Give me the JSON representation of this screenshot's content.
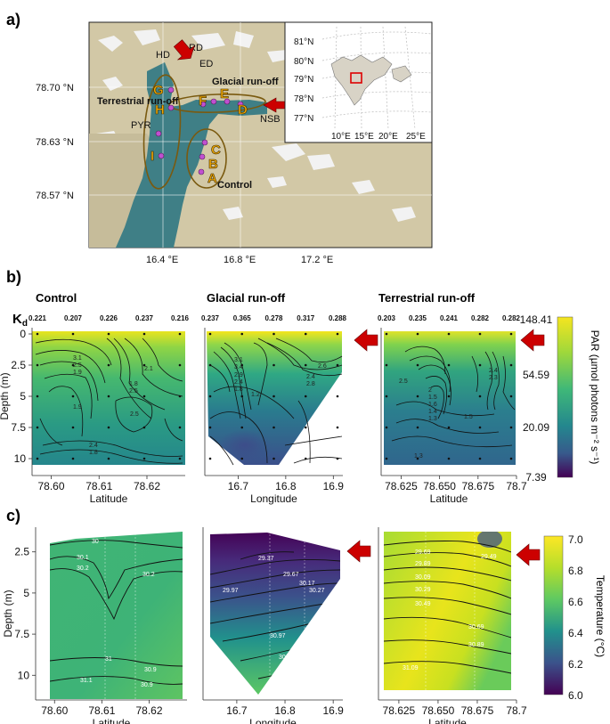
{
  "panel_labels": {
    "a": "a)",
    "b": "b)",
    "c": "c)"
  },
  "map": {
    "lat_ticks": [
      "78.70 °N",
      "78.63 °N",
      "78.57 °N"
    ],
    "lon_ticks": [
      "16.4 °E",
      "16.8 °E",
      "17.2 °E"
    ],
    "site_labels": [
      "HD",
      "RD",
      "ED",
      "PYR",
      "NSB"
    ],
    "group_labels": [
      "Terrestrial run-off",
      "Glacial run-off",
      "Control"
    ],
    "stations": [
      "A",
      "B",
      "C",
      "D",
      "E",
      "F",
      "G",
      "H",
      "I"
    ],
    "inset_lat_ticks": [
      "81°N",
      "80°N",
      "79°N",
      "78°N",
      "77°N"
    ],
    "inset_lon_ticks": [
      "10°E",
      "15°E",
      "20°E",
      "25°E"
    ],
    "colors": {
      "station_label": "#f2a900",
      "point": "#c050d0",
      "arrow": "#cc0000",
      "ellipse": "#8a6a10"
    }
  },
  "kd_label": "K",
  "kd_sub": "d",
  "colorbars": {
    "par": {
      "label": "PAR (µmol photons m⁻² s⁻¹)",
      "ticks": [
        "148.41",
        "54.59",
        "20.09",
        "7.39"
      ]
    },
    "temp": {
      "label": "Temperature (°C)",
      "ticks": [
        "7.0",
        "6.8",
        "6.6",
        "6.4",
        "6.2",
        "6.0"
      ]
    }
  },
  "chart_data": [
    {
      "id": "b1",
      "type": "heatmap",
      "title": "Control",
      "xlabel": "Latitude",
      "ylabel": "Depth (m)",
      "xlim": [
        78.596,
        78.628
      ],
      "ylim": [
        10.5,
        -0.5
      ],
      "x_ticks": [
        "78.60",
        "78.61",
        "78.62"
      ],
      "y_ticks": [
        "0",
        "2.5",
        "5",
        "7.5",
        "10"
      ],
      "kd": [
        "0.221",
        "0.207",
        "0.226",
        "0.237",
        "0.216"
      ],
      "contour_labels": [
        "3.1",
        "2.5",
        "1.9",
        "2.1",
        "1.8",
        "2.5",
        "1.9",
        "2.5",
        "2.4",
        "1.8"
      ]
    },
    {
      "id": "b2",
      "type": "heatmap",
      "title": "Glacial run-off",
      "xlabel": "Longitude",
      "ylabel": "",
      "xlim": [
        16.63,
        16.92
      ],
      "ylim": [
        10.5,
        -0.5
      ],
      "x_ticks": [
        "16.7",
        "16.8",
        "16.9"
      ],
      "y_ticks": [],
      "kd": [
        "0.237",
        "0.365",
        "0.278",
        "0.317",
        "0.288"
      ],
      "contour_labels": [
        "3.1",
        "3.4",
        "2.9",
        "2.4",
        "1.8",
        "2.6",
        "2.4",
        "2.8",
        "1.2"
      ]
    },
    {
      "id": "b3",
      "type": "heatmap",
      "title": "Terrestrial run-off",
      "xlabel": "Latitude",
      "ylabel": "",
      "xlim": [
        78.612,
        78.7
      ],
      "ylim": [
        10.5,
        -0.5
      ],
      "x_ticks": [
        "78.625",
        "78.650",
        "78.675",
        "78.7"
      ],
      "y_ticks": [],
      "kd": [
        "0.203",
        "0.235",
        "0.241",
        "0.282",
        "0.282"
      ],
      "contour_labels": [
        "2.5",
        "2",
        "1.5",
        "1.6",
        "1.4",
        "1.3",
        "1.3",
        "2.4",
        "2.3",
        "1.5"
      ]
    },
    {
      "id": "c1",
      "type": "heatmap",
      "title": "",
      "xlabel": "Latitude",
      "ylabel": "Depth (m)",
      "xlim": [
        78.596,
        78.628
      ],
      "ylim": [
        11.5,
        1.0
      ],
      "x_ticks": [
        "78.60",
        "78.61",
        "78.62"
      ],
      "y_ticks": [
        "2.5",
        "5",
        "7.5",
        "10"
      ],
      "contour_labels": [
        "30",
        "30.1",
        "30.2",
        "30.2",
        "31",
        "30.9",
        "31.1",
        "30.9"
      ]
    },
    {
      "id": "c2",
      "type": "heatmap",
      "title": "",
      "xlabel": "Longitude",
      "ylabel": "",
      "xlim": [
        16.63,
        16.92
      ],
      "ylim": [
        11.5,
        1.0
      ],
      "x_ticks": [
        "16.7",
        "16.8",
        "16.9"
      ],
      "y_ticks": [],
      "contour_labels": [
        "29.37",
        "29.67",
        "29.97",
        "30.17",
        "30.27",
        "30.97",
        "30.87",
        "31.07"
      ]
    },
    {
      "id": "c3",
      "type": "heatmap",
      "title": "",
      "xlabel": "Latitude",
      "ylabel": "",
      "xlim": [
        78.612,
        78.7
      ],
      "ylim": [
        11.5,
        1.0
      ],
      "x_ticks": [
        "78.625",
        "78.650",
        "78.675",
        "78.7"
      ],
      "y_ticks": [],
      "contour_labels": [
        "29.69",
        "29.89",
        "30.09",
        "30.29",
        "30.49",
        "29.49",
        "30.69",
        "30.89",
        "31.09"
      ]
    }
  ]
}
